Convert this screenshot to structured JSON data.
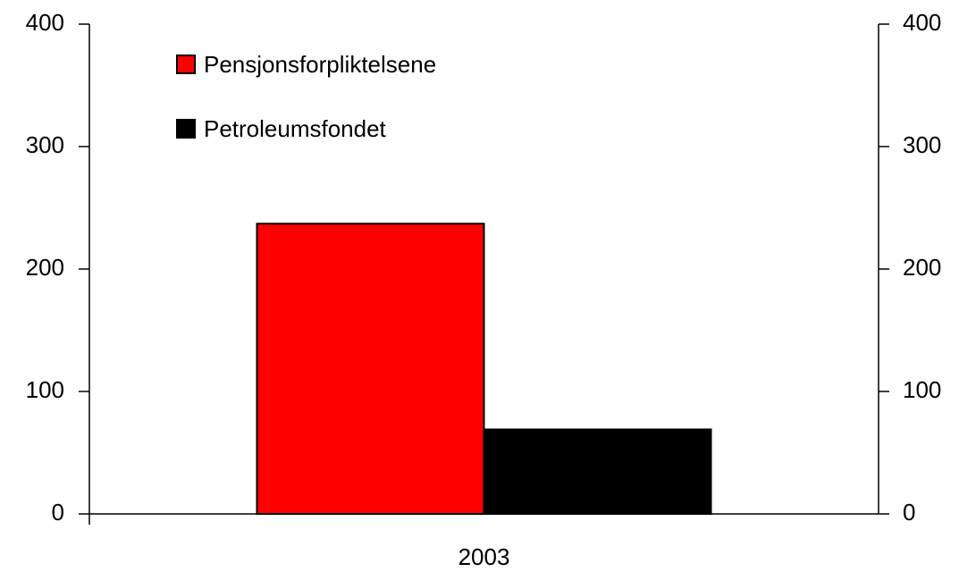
{
  "chart_data": {
    "type": "bar",
    "categories": [
      "2003"
    ],
    "series": [
      {
        "name": "Pensjonsforpliktelsene",
        "color": "#ff0000",
        "values": [
          237
        ]
      },
      {
        "name": "Petroleumsfondet",
        "color": "#000000",
        "values": [
          69
        ]
      }
    ],
    "ylim": [
      0,
      400
    ],
    "yticks": [
      0,
      100,
      200,
      300,
      400
    ],
    "y2lim": [
      0,
      400
    ],
    "y2ticks": [
      0,
      100,
      200,
      300,
      400
    ],
    "legend": "upper left"
  }
}
